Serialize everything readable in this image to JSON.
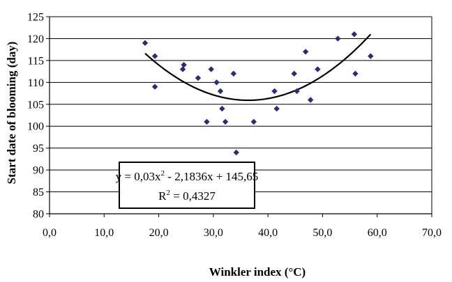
{
  "chart_data": {
    "type": "scatter",
    "xlabel": "Winkler index (°C)",
    "ylabel": "Start date of blooming (day)",
    "xlim": [
      0,
      70
    ],
    "ylim": [
      80,
      125
    ],
    "x_ticks": [
      "0,0",
      "10,0",
      "20,0",
      "30,0",
      "40,0",
      "50,0",
      "60,0",
      "70,0"
    ],
    "x_tick_values": [
      0,
      10,
      20,
      30,
      40,
      50,
      60,
      70
    ],
    "y_ticks": [
      "80",
      "85",
      "90",
      "95",
      "100",
      "105",
      "110",
      "115",
      "120",
      "125"
    ],
    "y_tick_values": [
      80,
      85,
      90,
      95,
      100,
      105,
      110,
      115,
      120,
      125
    ],
    "grid": "horizontal",
    "marker_color": "#2B2B7A",
    "points": [
      {
        "x": 17.5,
        "y": 119
      },
      {
        "x": 19.3,
        "y": 116
      },
      {
        "x": 19.3,
        "y": 109
      },
      {
        "x": 24.4,
        "y": 113
      },
      {
        "x": 24.6,
        "y": 114
      },
      {
        "x": 27.2,
        "y": 111
      },
      {
        "x": 28.8,
        "y": 101
      },
      {
        "x": 29.6,
        "y": 113
      },
      {
        "x": 30.6,
        "y": 110
      },
      {
        "x": 31.3,
        "y": 108
      },
      {
        "x": 31.6,
        "y": 104
      },
      {
        "x": 32.2,
        "y": 101
      },
      {
        "x": 33.7,
        "y": 112
      },
      {
        "x": 34.2,
        "y": 94
      },
      {
        "x": 37.4,
        "y": 101
      },
      {
        "x": 41.2,
        "y": 108
      },
      {
        "x": 41.6,
        "y": 104
      },
      {
        "x": 44.8,
        "y": 112
      },
      {
        "x": 45.3,
        "y": 108
      },
      {
        "x": 46.9,
        "y": 117
      },
      {
        "x": 47.8,
        "y": 106
      },
      {
        "x": 49.1,
        "y": 113
      },
      {
        "x": 52.8,
        "y": 120
      },
      {
        "x": 55.8,
        "y": 121
      },
      {
        "x": 56.0,
        "y": 112
      },
      {
        "x": 58.8,
        "y": 116
      }
    ],
    "trendline": {
      "type": "polynomial",
      "coefficients": [
        0.03,
        -2.1836,
        145.65
      ],
      "x_range": [
        17.5,
        58.8
      ],
      "equation_text": "y = 0,03x",
      "equation_sup": "2",
      "equation_rest": " - 2,1836x + 145,65",
      "r2_label": "R",
      "r2_sup": "2",
      "r2_value": " = 0,4327"
    }
  }
}
